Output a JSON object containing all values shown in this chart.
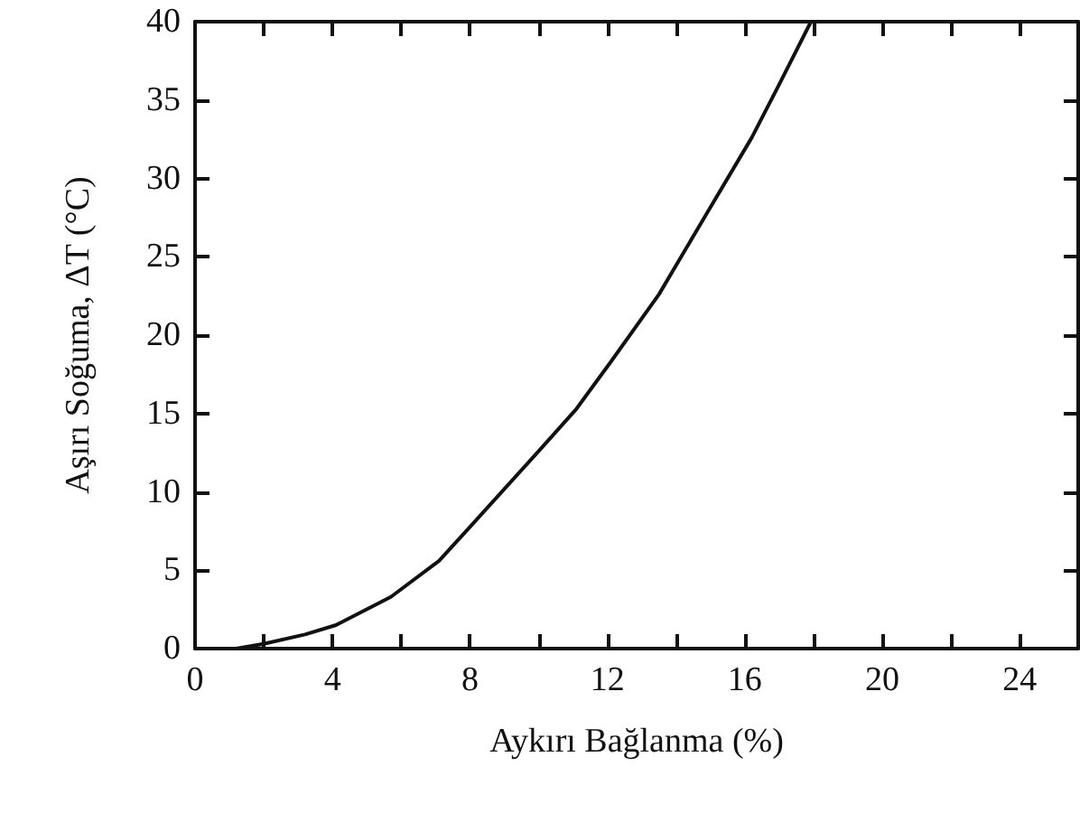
{
  "chart_data": {
    "type": "line",
    "xlabel": "Aykırı Bağlanma (%)",
    "ylabel": "Aşırı Soğuma, ΔT (°C)",
    "xlim": [
      0,
      25.7
    ],
    "ylim": [
      0,
      40
    ],
    "xticks": [
      0,
      {
        "value": 2,
        "label": null
      },
      4,
      {
        "value": 6,
        "label": null
      },
      8,
      {
        "value": 10,
        "label": null
      },
      12,
      {
        "value": 14,
        "label": null
      },
      16,
      {
        "value": 18,
        "label": null
      },
      20,
      {
        "value": 22,
        "label": null
      },
      24
    ],
    "yticks": [
      0,
      5,
      10,
      15,
      20,
      25,
      30,
      35,
      40
    ],
    "grid": false,
    "marker": "none",
    "line_style": "solid",
    "series": [
      {
        "color": "#111111",
        "x": [
          1.2,
          2,
          3.2,
          4.1,
          5.7,
          7.1,
          8.1,
          10,
          11.1,
          12.1,
          13.5,
          14.9,
          16.2,
          17,
          17.9
        ],
        "values": [
          0,
          0.3,
          0.9,
          1.5,
          3.3,
          5.6,
          8,
          12.6,
          15.3,
          18.3,
          22.6,
          27.8,
          32.6,
          36,
          39.9
        ]
      }
    ]
  }
}
